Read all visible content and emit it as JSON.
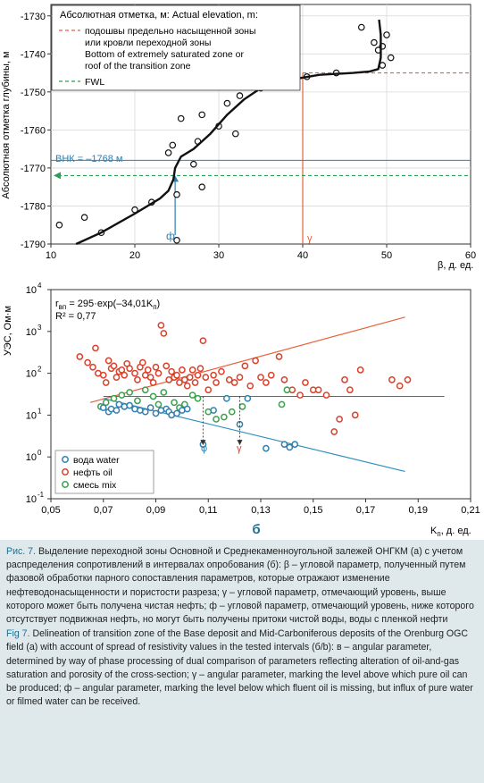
{
  "figure": {
    "panel_a": {
      "ylabel": "Абсолютная отметка глубины, м",
      "xlabel": "β, д. ед.",
      "x_ticks": [
        "10",
        "20",
        "30",
        "40",
        "50",
        "60"
      ],
      "y_ticks": [
        "-1730",
        "-1740",
        "-1750",
        "-1760",
        "-1770",
        "-1780",
        "-1790"
      ],
      "legend": {
        "title": "Абсолютная отметка, м: Actual elevation, m:",
        "item1_ru_line1": "подошвы предельно насыщенной зоны",
        "item1_ru_line2": "или кровли переходной зоны",
        "item1_en_line1": "Bottom of extremely saturated zone or",
        "item1_en_line2": "roof of the transition zone",
        "item2": "FWL"
      },
      "vnk_label": "ВНК = –1768 м",
      "phi_label": "ф",
      "gamma_label": "γ",
      "colors": {
        "curve": "#111111",
        "saturated": "#e8613a",
        "fwl": "#2aa055",
        "vnk": "#2f7fb0",
        "phi": "#2f7fb0",
        "gamma": "#e8613a"
      }
    },
    "panel_b": {
      "ylabel": "УЭС, Ом·м",
      "xlabel": "K",
      "xlabel_sub": "п",
      "xlabel_units": ", д. ед.",
      "panel_letter": "б",
      "x_ticks": [
        "0,05",
        "0,07",
        "0,09",
        "0,11",
        "0,13",
        "0,15",
        "0,17",
        "0,19",
        "0,21"
      ],
      "y_ticks": [
        "10",
        "10",
        "10",
        "10",
        "10",
        "10"
      ],
      "y_exps": [
        "4",
        "3",
        "2",
        "1",
        "0",
        "-1"
      ],
      "eq_lhs": "r",
      "eq_lhs_sub": "вп",
      "eq_rhs": " = 295·exp(–34,01K",
      "eq_rhs_sub": "п",
      "eq_close": ")",
      "r2": "R² = 0,77",
      "phi_label": "φ",
      "gamma_label": "γ",
      "legend": {
        "water": "вода water",
        "oil": "нефть oil",
        "mix": "смесь mix"
      },
      "colors": {
        "water": "#2f7fb0",
        "oil": "#d9412b",
        "mix": "#3aa04a",
        "oil_line": "#e8613a",
        "water_line": "#2f8fc0"
      }
    }
  },
  "chart_data": [
    {
      "type": "scatter",
      "xlabel": "β, д. ед.",
      "ylabel": "Абсолютная отметка глубины, м",
      "xlim": [
        10,
        60
      ],
      "ylim": [
        -1790,
        -1727
      ],
      "points": [
        [
          11,
          -1785
        ],
        [
          14,
          -1783
        ],
        [
          16,
          -1787
        ],
        [
          20,
          -1781
        ],
        [
          22,
          -1779
        ],
        [
          24,
          -1766
        ],
        [
          24.5,
          -1764
        ],
        [
          25,
          -1777
        ],
        [
          25,
          -1789
        ],
        [
          25.5,
          -1757
        ],
        [
          27,
          -1769
        ],
        [
          27.5,
          -1763
        ],
        [
          28,
          -1756
        ],
        [
          28,
          -1775
        ],
        [
          30,
          -1759
        ],
        [
          31,
          -1753
        ],
        [
          32,
          -1761
        ],
        [
          32.5,
          -1751
        ],
        [
          35,
          -1749
        ],
        [
          40.5,
          -1746
        ],
        [
          44,
          -1745
        ],
        [
          47,
          -1733
        ],
        [
          48.5,
          -1737
        ],
        [
          49,
          -1739
        ],
        [
          49.5,
          -1738
        ],
        [
          49.5,
          -1743
        ],
        [
          50,
          -1735
        ],
        [
          50.5,
          -1741
        ]
      ],
      "fit_curve": [
        [
          13,
          -1790
        ],
        [
          16,
          -1787
        ],
        [
          20,
          -1782
        ],
        [
          23,
          -1778
        ],
        [
          24,
          -1776
        ],
        [
          24.6,
          -1773
        ],
        [
          24.8,
          -1770
        ],
        [
          25.5,
          -1767
        ],
        [
          27,
          -1765
        ],
        [
          29,
          -1761
        ],
        [
          31,
          -1756
        ],
        [
          33,
          -1752
        ],
        [
          35,
          -1749
        ],
        [
          38,
          -1747
        ],
        [
          42,
          -1745.5
        ],
        [
          46,
          -1745
        ],
        [
          48,
          -1744.6
        ],
        [
          49,
          -1744
        ],
        [
          49.3,
          -1741
        ],
        [
          49.3,
          -1735
        ],
        [
          49.1,
          -1731
        ]
      ],
      "saturated_zone_level": -1745,
      "fwl_level": -1772,
      "vnk_level": -1768,
      "phi_beta": 24.8,
      "gamma_beta": 40,
      "series": []
    },
    {
      "type": "scatter",
      "xlabel": "Kп, д. ед.",
      "ylabel": "УЭС, Ом·м",
      "log_y": true,
      "xlim": [
        0.05,
        0.21
      ],
      "ylim": [
        0.1,
        10000
      ],
      "series": [
        {
          "name": "вода water",
          "points": [
            [
              0.07,
              15
            ],
            [
              0.072,
              12
            ],
            [
              0.073,
              14
            ],
            [
              0.075,
              13
            ],
            [
              0.076,
              18
            ],
            [
              0.078,
              16
            ],
            [
              0.08,
              17
            ],
            [
              0.082,
              14
            ],
            [
              0.084,
              13
            ],
            [
              0.086,
              12
            ],
            [
              0.088,
              15
            ],
            [
              0.09,
              11
            ],
            [
              0.092,
              13
            ],
            [
              0.094,
              14
            ],
            [
              0.095,
              12
            ],
            [
              0.096,
              10
            ],
            [
              0.098,
              11
            ],
            [
              0.1,
              13
            ],
            [
              0.102,
              14
            ],
            [
              0.108,
              2
            ],
            [
              0.112,
              13
            ],
            [
              0.117,
              25
            ],
            [
              0.122,
              6
            ],
            [
              0.125,
              25
            ],
            [
              0.132,
              1.6
            ],
            [
              0.139,
              2
            ],
            [
              0.141,
              1.7
            ],
            [
              0.143,
              2
            ]
          ]
        },
        {
          "name": "нефть oil",
          "points": [
            [
              0.061,
              250
            ],
            [
              0.064,
              180
            ],
            [
              0.066,
              140
            ],
            [
              0.067,
              400
            ],
            [
              0.068,
              100
            ],
            [
              0.07,
              90
            ],
            [
              0.071,
              60
            ],
            [
              0.072,
              200
            ],
            [
              0.073,
              130
            ],
            [
              0.074,
              150
            ],
            [
              0.075,
              80
            ],
            [
              0.076,
              110
            ],
            [
              0.077,
              120
            ],
            [
              0.078,
              90
            ],
            [
              0.079,
              170
            ],
            [
              0.08,
              130
            ],
            [
              0.082,
              100
            ],
            [
              0.083,
              70
            ],
            [
              0.084,
              140
            ],
            [
              0.085,
              180
            ],
            [
              0.086,
              90
            ],
            [
              0.087,
              120
            ],
            [
              0.088,
              80
            ],
            [
              0.089,
              60
            ],
            [
              0.09,
              140
            ],
            [
              0.091,
              100
            ],
            [
              0.092,
              1400
            ],
            [
              0.093,
              900
            ],
            [
              0.094,
              150
            ],
            [
              0.095,
              70
            ],
            [
              0.096,
              110
            ],
            [
              0.097,
              80
            ],
            [
              0.098,
              90
            ],
            [
              0.099,
              60
            ],
            [
              0.1,
              120
            ],
            [
              0.101,
              70
            ],
            [
              0.102,
              50
            ],
            [
              0.103,
              80
            ],
            [
              0.104,
              120
            ],
            [
              0.105,
              60
            ],
            [
              0.106,
              90
            ],
            [
              0.107,
              130
            ],
            [
              0.108,
              600
            ],
            [
              0.109,
              80
            ],
            [
              0.11,
              40
            ],
            [
              0.112,
              90
            ],
            [
              0.113,
              60
            ],
            [
              0.115,
              110
            ],
            [
              0.118,
              70
            ],
            [
              0.12,
              60
            ],
            [
              0.122,
              80
            ],
            [
              0.124,
              150
            ],
            [
              0.126,
              50
            ],
            [
              0.128,
              200
            ],
            [
              0.13,
              80
            ],
            [
              0.132,
              60
            ],
            [
              0.134,
              90
            ],
            [
              0.137,
              250
            ],
            [
              0.139,
              70
            ],
            [
              0.142,
              40
            ],
            [
              0.145,
              30
            ],
            [
              0.147,
              60
            ],
            [
              0.15,
              40
            ],
            [
              0.152,
              40
            ],
            [
              0.155,
              30
            ],
            [
              0.158,
              4
            ],
            [
              0.16,
              8
            ],
            [
              0.162,
              70
            ],
            [
              0.164,
              40
            ],
            [
              0.166,
              10
            ],
            [
              0.168,
              120
            ],
            [
              0.18,
              70
            ],
            [
              0.183,
              50
            ],
            [
              0.186,
              70
            ]
          ]
        },
        {
          "name": "смесь mix",
          "points": [
            [
              0.069,
              16
            ],
            [
              0.071,
              20
            ],
            [
              0.074,
              25
            ],
            [
              0.077,
              30
            ],
            [
              0.08,
              35
            ],
            [
              0.083,
              22
            ],
            [
              0.086,
              40
            ],
            [
              0.089,
              28
            ],
            [
              0.091,
              18
            ],
            [
              0.093,
              35
            ],
            [
              0.097,
              20
            ],
            [
              0.099,
              15
            ],
            [
              0.101,
              18
            ],
            [
              0.104,
              30
            ],
            [
              0.106,
              25
            ],
            [
              0.11,
              12
            ],
            [
              0.113,
              8
            ],
            [
              0.116,
              9
            ],
            [
              0.119,
              12
            ],
            [
              0.123,
              16
            ],
            [
              0.138,
              18
            ],
            [
              0.14,
              40
            ]
          ]
        }
      ],
      "fit_oil_line": [
        [
          0.065,
          20
        ],
        [
          0.185,
          2200
        ]
      ],
      "fit_water_line": [
        [
          0.07,
          25
        ],
        [
          0.185,
          0.45
        ]
      ],
      "horizontal_line_level": 28,
      "phi_x": 0.108,
      "gamma_x": 0.122,
      "fit_equation": "rвп = 295·exp(–34,01Kп)",
      "r2": 0.77
    }
  ],
  "caption": {
    "ru_label": "Рис. 7.",
    "ru_text": " Выделение переходной зоны Основной и Среднекаменноугольной залежей ОНГКМ (а) с учетом распределения сопротивлений в интервалах опробования (б): β – угловой параметр, полученный путем фазовой обработки парного сопоставления параметров, которые отражают изменение нефтеводонасыщенности и пористости разреза; γ – угловой параметр, отмечающий уровень, выше которого может быть получена чистая нефть; ф – угловой параметр, отмечающий уровень, ниже которого отсутствует подвижная нефть, но могут быть получены притоки чистой воды, воды с пленкой нефти",
    "en_label": "Fig 7.",
    "en_text": " Delineation of transition zone of the Base deposit and Mid-Carboniferous deposits of the Orenburg OGC field (a) with account of spread of resistivity values in the tested intervals (б/b): в – angular parameter, determined by way of phase processing of dual comparison of parameters reflecting alteration of oil-and-gas saturation and porosity of the cross-section; γ – angular parameter, marking the level above which pure oil can be produced; ф – angular parameter, marking the level below which fluent oil is missing, but influx of pure water or filmed water can be received."
  }
}
